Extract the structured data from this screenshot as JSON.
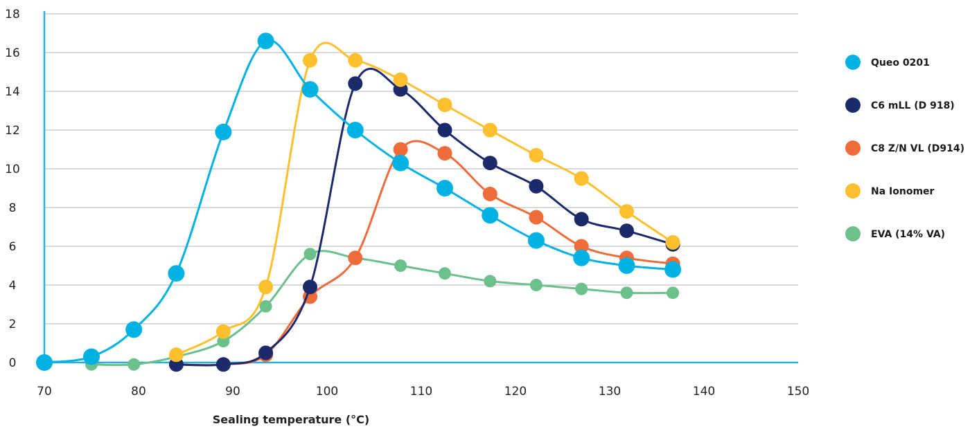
{
  "chart_data": {
    "type": "line",
    "title": "",
    "xlabel": "Sealing temperature (°C)",
    "ylabel": "",
    "xlim": [
      70,
      150
    ],
    "ylim": [
      0,
      18
    ],
    "xticks": [
      70,
      80,
      90,
      100,
      110,
      120,
      130,
      140,
      150
    ],
    "yticks": [
      0,
      2,
      4,
      6,
      8,
      10,
      12,
      14,
      16,
      18
    ],
    "grid": true,
    "legend_position": "right",
    "series": [
      {
        "name": "Queo 0201",
        "color": "#00b2e3",
        "marker_size": "large",
        "x": [
          70,
          75,
          79.5,
          84,
          89,
          93.5,
          98.2,
          103,
          107.8,
          112.5,
          117.3,
          122.2,
          127,
          131.8,
          136.7
        ],
        "y": [
          0,
          0.3,
          1.7,
          4.6,
          11.9,
          16.6,
          14.1,
          12.0,
          10.3,
          9.0,
          7.6,
          6.3,
          5.4,
          5.0,
          4.8
        ]
      },
      {
        "name": "C6 mLL (D 918)",
        "color": "#1c2a6b",
        "marker_size": "medium",
        "x": [
          84,
          89,
          93.5,
          98.2,
          103,
          107.8,
          112.5,
          117.3,
          122.2,
          127,
          131.8,
          136.7
        ],
        "y": [
          -0.1,
          -0.1,
          0.5,
          3.9,
          14.4,
          14.1,
          12.0,
          10.3,
          9.1,
          7.4,
          6.8,
          6.1
        ]
      },
      {
        "name": "C8 Z/N VL (D914)",
        "color": "#ef6b3a",
        "marker_size": "medium",
        "x": [
          84,
          89,
          93.5,
          98.2,
          103,
          107.8,
          112.5,
          117.3,
          122.2,
          127,
          131.8,
          136.7
        ],
        "y": [
          -0.1,
          -0.1,
          0.4,
          3.4,
          5.4,
          11.0,
          10.8,
          8.7,
          7.5,
          6.0,
          5.4,
          5.1
        ]
      },
      {
        "name": "Na Ionomer",
        "color": "#fcc02e",
        "marker_size": "medium",
        "x": [
          84,
          89,
          93.5,
          98.2,
          103,
          107.8,
          112.5,
          117.3,
          122.2,
          127,
          131.8,
          136.7
        ],
        "y": [
          0.4,
          1.6,
          3.9,
          15.6,
          15.6,
          14.6,
          13.3,
          12.0,
          10.7,
          9.5,
          7.8,
          6.2
        ]
      },
      {
        "name": "EVA (14% VA)",
        "color": "#6cc08c",
        "marker_size": "small",
        "x": [
          75,
          79.5,
          84,
          89,
          93.5,
          98.2,
          103,
          107.8,
          112.5,
          117.3,
          122.2,
          127,
          131.8,
          136.7
        ],
        "y": [
          -0.1,
          -0.1,
          0.3,
          1.1,
          2.9,
          5.6,
          5.4,
          5.0,
          4.6,
          4.2,
          4.0,
          3.8,
          3.6,
          3.6
        ]
      }
    ]
  }
}
